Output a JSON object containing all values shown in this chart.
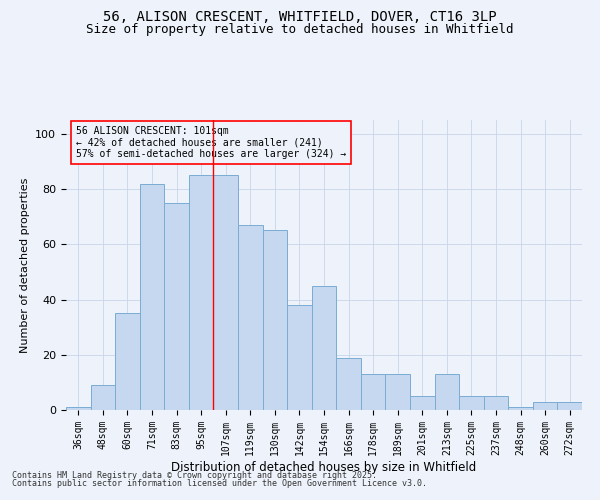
{
  "title_line1": "56, ALISON CRESCENT, WHITFIELD, DOVER, CT16 3LP",
  "title_line2": "Size of property relative to detached houses in Whitfield",
  "xlabel": "Distribution of detached houses by size in Whitfield",
  "ylabel": "Number of detached properties",
  "categories": [
    "36sqm",
    "48sqm",
    "60sqm",
    "71sqm",
    "83sqm",
    "95sqm",
    "107sqm",
    "119sqm",
    "130sqm",
    "142sqm",
    "154sqm",
    "166sqm",
    "178sqm",
    "189sqm",
    "201sqm",
    "213sqm",
    "225sqm",
    "237sqm",
    "248sqm",
    "260sqm",
    "272sqm"
  ],
  "values": [
    1,
    9,
    35,
    82,
    75,
    85,
    85,
    67,
    65,
    38,
    45,
    19,
    13,
    13,
    5,
    13,
    5,
    5,
    1,
    3,
    3
  ],
  "bar_color": "#c5d8f0",
  "bar_edge_color": "#7aadd4",
  "red_line_x": 5.5,
  "ylim": [
    0,
    105
  ],
  "yticks": [
    0,
    20,
    40,
    60,
    80,
    100
  ],
  "background_color": "#eef3fb",
  "grid_color": "#c8d4e8",
  "footnote1": "Contains HM Land Registry data © Crown copyright and database right 2025.",
  "footnote2": "Contains public sector information licensed under the Open Government Licence v3.0.",
  "title_fontsize": 10,
  "subtitle_fontsize": 9,
  "annot_line1": "56 ALISON CRESCENT: 101sqm",
  "annot_line2": "← 42% of detached houses are smaller (241)",
  "annot_line3": "57% of semi-detached houses are larger (324) →"
}
